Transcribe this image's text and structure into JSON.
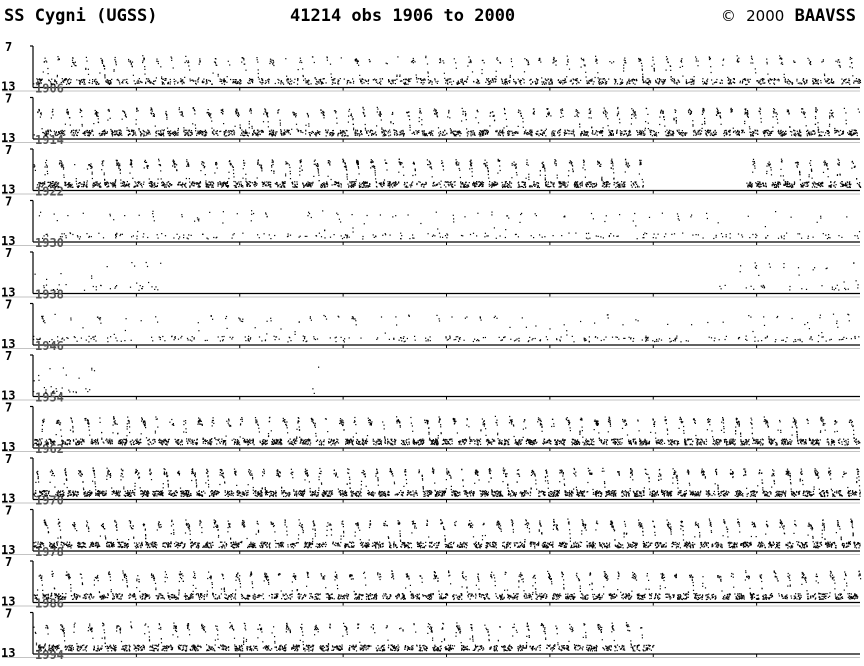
{
  "header": {
    "title": "SS Cygni (UGSS)",
    "obs_summary": "41214 obs 1906 to 2000",
    "copyright_symbol": "©",
    "copyright_year": "2000",
    "copyright_org": "BAAVSS"
  },
  "chart_data": {
    "type": "scatter",
    "title": "SS Cygni (UGSS)",
    "subtitle": "41214 obs 1906 to 2000",
    "total_observations": 41214,
    "ylim": [
      13,
      7
    ],
    "y_tick_labels": [
      "7",
      "13"
    ],
    "panel_span_years": 8,
    "grid": false,
    "panels": [
      {
        "start_year": "1906",
        "coverage": [
          [
            1906.0,
            1914.0
          ]
        ],
        "density": 0.75
      },
      {
        "start_year": "1914",
        "coverage": [
          [
            1914.0,
            1922.0
          ]
        ],
        "density": 0.9
      },
      {
        "start_year": "1922",
        "coverage": [
          [
            1922.0,
            1927.9
          ],
          [
            1928.9,
            1930.0
          ]
        ],
        "density": 0.95
      },
      {
        "start_year": "1930",
        "coverage": [
          [
            1930.0,
            1938.0
          ]
        ],
        "density": 0.35
      },
      {
        "start_year": "1938",
        "coverage": [
          [
            1938.0,
            1939.3
          ],
          [
            1944.6,
            1946.0
          ]
        ],
        "density": 0.3
      },
      {
        "start_year": "1946",
        "coverage": [
          [
            1946.0,
            1954.0
          ]
        ],
        "density": 0.4
      },
      {
        "start_year": "1954",
        "coverage": [
          [
            1954.0,
            1954.6
          ],
          [
            1956.7,
            1956.8
          ]
        ],
        "density": 0.4
      },
      {
        "start_year": "1962",
        "coverage": [
          [
            1962.0,
            1970.0
          ]
        ],
        "density": 0.95
      },
      {
        "start_year": "1970",
        "coverage": [
          [
            1970.0,
            1978.0
          ]
        ],
        "density": 1.0
      },
      {
        "start_year": "1978",
        "coverage": [
          [
            1978.0,
            1986.0
          ]
        ],
        "density": 0.95
      },
      {
        "start_year": "1986",
        "coverage": [
          [
            1986.0,
            1994.0
          ]
        ],
        "density": 0.9
      },
      {
        "start_year": "1994",
        "coverage": [
          [
            1994.0,
            2000.0
          ]
        ],
        "density": 0.9
      }
    ],
    "light_curve": {
      "quiescent_magnitude": 12.0,
      "outburst_peak_magnitude": 8.5,
      "mean_outburst_interval_days": 50,
      "outburst_duration_days": [
        8,
        16
      ]
    },
    "colors": {
      "points": "#000000",
      "frame": "#000000",
      "year_label": "#555555"
    }
  }
}
